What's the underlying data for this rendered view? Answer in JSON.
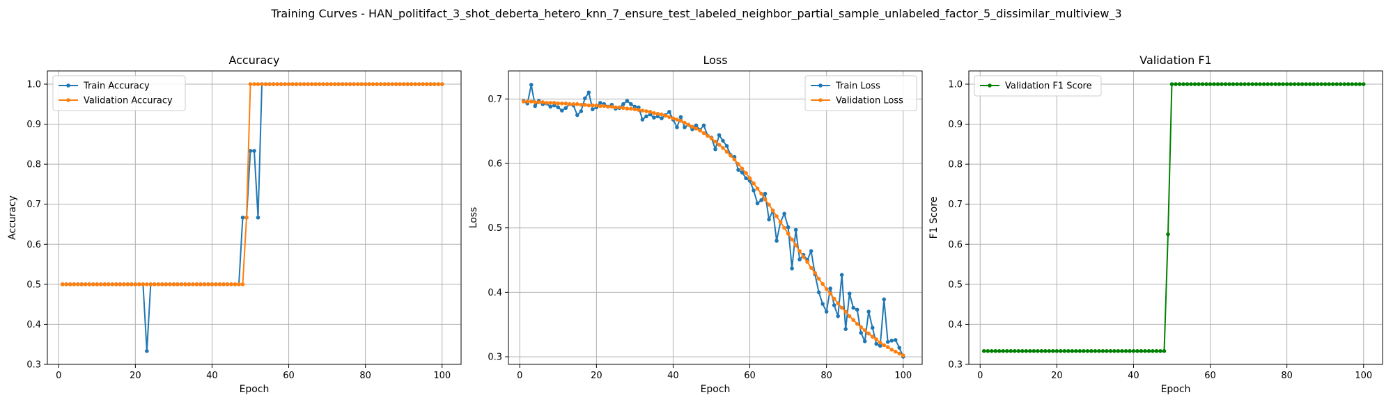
{
  "figure": {
    "suptitle": "Training Curves - HAN_politifact_3_shot_deberta_hetero_knn_7_ensure_test_labeled_neighbor_partial_sample_unlabeled_factor_5_dissimilar_multiview_3"
  },
  "colors": {
    "train": "#1f77b4",
    "validation": "#ff7f0e",
    "f1": "#008000",
    "grid": "#b0b0b0",
    "axis": "#000000"
  },
  "chart_data": [
    {
      "type": "line",
      "title": "Accuracy",
      "xlabel": "Epoch",
      "ylabel": "Accuracy",
      "xlim": [
        -2.95,
        104.95
      ],
      "ylim": [
        0.3,
        1.033
      ],
      "xticks": [
        0,
        20,
        40,
        60,
        80,
        100
      ],
      "yticks": [
        0.3,
        0.4,
        0.5,
        0.6,
        0.7,
        0.8,
        0.9,
        1.0
      ],
      "ytick_labels": [
        "0.3",
        "0.4",
        "0.5",
        "0.6",
        "0.7",
        "0.8",
        "0.9",
        "1.0"
      ],
      "grid": true,
      "legend_position": "upper left",
      "x": [
        1,
        2,
        3,
        4,
        5,
        6,
        7,
        8,
        9,
        10,
        11,
        12,
        13,
        14,
        15,
        16,
        17,
        18,
        19,
        20,
        21,
        22,
        23,
        24,
        25,
        26,
        27,
        28,
        29,
        30,
        31,
        32,
        33,
        34,
        35,
        36,
        37,
        38,
        39,
        40,
        41,
        42,
        43,
        44,
        45,
        46,
        47,
        48,
        49,
        50,
        51,
        52,
        53,
        54,
        55,
        56,
        57,
        58,
        59,
        60,
        61,
        62,
        63,
        64,
        65,
        66,
        67,
        68,
        69,
        70,
        71,
        72,
        73,
        74,
        75,
        76,
        77,
        78,
        79,
        80,
        81,
        82,
        83,
        84,
        85,
        86,
        87,
        88,
        89,
        90,
        91,
        92,
        93,
        94,
        95,
        96,
        97,
        98,
        99,
        100
      ],
      "series": [
        {
          "name": "Train Accuracy",
          "color": "#1f77b4",
          "values": [
            0.5,
            0.5,
            0.5,
            0.5,
            0.5,
            0.5,
            0.5,
            0.5,
            0.5,
            0.5,
            0.5,
            0.5,
            0.5,
            0.5,
            0.5,
            0.5,
            0.5,
            0.5,
            0.5,
            0.5,
            0.5,
            0.5,
            0.3333,
            0.5,
            0.5,
            0.5,
            0.5,
            0.5,
            0.5,
            0.5,
            0.5,
            0.5,
            0.5,
            0.5,
            0.5,
            0.5,
            0.5,
            0.5,
            0.5,
            0.5,
            0.5,
            0.5,
            0.5,
            0.5,
            0.5,
            0.5,
            0.5,
            0.6667,
            0.6667,
            0.8333,
            0.8333,
            0.6667,
            1.0,
            1.0,
            1.0,
            1.0,
            1.0,
            1.0,
            1.0,
            1.0,
            1.0,
            1.0,
            1.0,
            1.0,
            1.0,
            1.0,
            1.0,
            1.0,
            1.0,
            1.0,
            1.0,
            1.0,
            1.0,
            1.0,
            1.0,
            1.0,
            1.0,
            1.0,
            1.0,
            1.0,
            1.0,
            1.0,
            1.0,
            1.0,
            1.0,
            1.0,
            1.0,
            1.0,
            1.0,
            1.0,
            1.0,
            1.0,
            1.0,
            1.0,
            1.0,
            1.0,
            1.0,
            1.0,
            1.0,
            1.0
          ]
        },
        {
          "name": "Validation Accuracy",
          "color": "#ff7f0e",
          "values": [
            0.5,
            0.5,
            0.5,
            0.5,
            0.5,
            0.5,
            0.5,
            0.5,
            0.5,
            0.5,
            0.5,
            0.5,
            0.5,
            0.5,
            0.5,
            0.5,
            0.5,
            0.5,
            0.5,
            0.5,
            0.5,
            0.5,
            0.5,
            0.5,
            0.5,
            0.5,
            0.5,
            0.5,
            0.5,
            0.5,
            0.5,
            0.5,
            0.5,
            0.5,
            0.5,
            0.5,
            0.5,
            0.5,
            0.5,
            0.5,
            0.5,
            0.5,
            0.5,
            0.5,
            0.5,
            0.5,
            0.5,
            0.5,
            0.6667,
            1.0,
            1.0,
            1.0,
            1.0,
            1.0,
            1.0,
            1.0,
            1.0,
            1.0,
            1.0,
            1.0,
            1.0,
            1.0,
            1.0,
            1.0,
            1.0,
            1.0,
            1.0,
            1.0,
            1.0,
            1.0,
            1.0,
            1.0,
            1.0,
            1.0,
            1.0,
            1.0,
            1.0,
            1.0,
            1.0,
            1.0,
            1.0,
            1.0,
            1.0,
            1.0,
            1.0,
            1.0,
            1.0,
            1.0,
            1.0,
            1.0,
            1.0,
            1.0,
            1.0,
            1.0,
            1.0,
            1.0,
            1.0,
            1.0,
            1.0,
            1.0
          ]
        }
      ]
    },
    {
      "type": "line",
      "title": "Loss",
      "xlabel": "Epoch",
      "ylabel": "Loss",
      "xlim": [
        -2.95,
        104.95
      ],
      "ylim": [
        0.2882,
        0.7435
      ],
      "xticks": [
        0,
        20,
        40,
        60,
        80,
        100
      ],
      "yticks": [
        0.3,
        0.4,
        0.5,
        0.6,
        0.7
      ],
      "ytick_labels": [
        "0.3",
        "0.4",
        "0.5",
        "0.6",
        "0.7"
      ],
      "grid": true,
      "legend_position": "upper right",
      "x": [
        1,
        2,
        3,
        4,
        5,
        6,
        7,
        8,
        9,
        10,
        11,
        12,
        13,
        14,
        15,
        16,
        17,
        18,
        19,
        20,
        21,
        22,
        23,
        24,
        25,
        26,
        27,
        28,
        29,
        30,
        31,
        32,
        33,
        34,
        35,
        36,
        37,
        38,
        39,
        40,
        41,
        42,
        43,
        44,
        45,
        46,
        47,
        48,
        49,
        50,
        51,
        52,
        53,
        54,
        55,
        56,
        57,
        58,
        59,
        60,
        61,
        62,
        63,
        64,
        65,
        66,
        67,
        68,
        69,
        70,
        71,
        72,
        73,
        74,
        75,
        76,
        77,
        78,
        79,
        80,
        81,
        82,
        83,
        84,
        85,
        86,
        87,
        88,
        89,
        90,
        91,
        92,
        93,
        94,
        95,
        96,
        97,
        98,
        99,
        100
      ],
      "series": [
        {
          "name": "Train Loss",
          "color": "#1f77b4",
          "values": [
            0.697,
            0.693,
            0.722,
            0.689,
            0.697,
            0.692,
            0.693,
            0.688,
            0.69,
            0.687,
            0.682,
            0.686,
            0.692,
            0.69,
            0.675,
            0.681,
            0.701,
            0.71,
            0.684,
            0.687,
            0.694,
            0.692,
            0.688,
            0.691,
            0.685,
            0.686,
            0.692,
            0.697,
            0.692,
            0.688,
            0.687,
            0.668,
            0.673,
            0.676,
            0.671,
            0.673,
            0.67,
            0.675,
            0.68,
            0.668,
            0.656,
            0.672,
            0.656,
            0.66,
            0.653,
            0.659,
            0.652,
            0.659,
            0.643,
            0.64,
            0.622,
            0.644,
            0.635,
            0.627,
            0.613,
            0.61,
            0.59,
            0.586,
            0.577,
            0.573,
            0.558,
            0.538,
            0.543,
            0.553,
            0.513,
            0.527,
            0.48,
            0.509,
            0.522,
            0.501,
            0.437,
            0.497,
            0.451,
            0.458,
            0.45,
            0.464,
            0.428,
            0.4,
            0.382,
            0.37,
            0.406,
            0.38,
            0.363,
            0.427,
            0.343,
            0.398,
            0.376,
            0.373,
            0.337,
            0.324,
            0.37,
            0.345,
            0.32,
            0.317,
            0.389,
            0.323,
            0.325,
            0.326,
            0.314,
            0.3
          ]
        },
        {
          "name": "Validation Loss",
          "color": "#ff7f0e",
          "values": [
            0.696,
            0.696,
            0.696,
            0.695,
            0.695,
            0.695,
            0.694,
            0.694,
            0.694,
            0.693,
            0.693,
            0.693,
            0.692,
            0.692,
            0.692,
            0.691,
            0.691,
            0.69,
            0.69,
            0.69,
            0.689,
            0.689,
            0.688,
            0.688,
            0.687,
            0.687,
            0.686,
            0.685,
            0.685,
            0.684,
            0.683,
            0.682,
            0.681,
            0.68,
            0.678,
            0.677,
            0.676,
            0.674,
            0.672,
            0.67,
            0.668,
            0.666,
            0.663,
            0.66,
            0.657,
            0.654,
            0.651,
            0.647,
            0.643,
            0.639,
            0.634,
            0.629,
            0.624,
            0.618,
            0.612,
            0.606,
            0.599,
            0.592,
            0.585,
            0.577,
            0.569,
            0.561,
            0.553,
            0.544,
            0.536,
            0.527,
            0.518,
            0.509,
            0.5,
            0.491,
            0.482,
            0.473,
            0.464,
            0.455,
            0.447,
            0.438,
            0.43,
            0.421,
            0.413,
            0.405,
            0.398,
            0.39,
            0.383,
            0.376,
            0.37,
            0.363,
            0.357,
            0.351,
            0.346,
            0.341,
            0.336,
            0.331,
            0.327,
            0.322,
            0.318,
            0.315,
            0.311,
            0.308,
            0.305,
            0.302
          ]
        }
      ]
    },
    {
      "type": "line",
      "title": "Validation F1",
      "xlabel": "Epoch",
      "ylabel": "F1 Score",
      "xlim": [
        -2.95,
        104.95
      ],
      "ylim": [
        0.3,
        1.033
      ],
      "xticks": [
        0,
        20,
        40,
        60,
        80,
        100
      ],
      "yticks": [
        0.3,
        0.4,
        0.5,
        0.6,
        0.7,
        0.8,
        0.9,
        1.0
      ],
      "ytick_labels": [
        "0.3",
        "0.4",
        "0.5",
        "0.6",
        "0.7",
        "0.8",
        "0.9",
        "1.0"
      ],
      "grid": true,
      "legend_position": "upper left",
      "x": [
        1,
        2,
        3,
        4,
        5,
        6,
        7,
        8,
        9,
        10,
        11,
        12,
        13,
        14,
        15,
        16,
        17,
        18,
        19,
        20,
        21,
        22,
        23,
        24,
        25,
        26,
        27,
        28,
        29,
        30,
        31,
        32,
        33,
        34,
        35,
        36,
        37,
        38,
        39,
        40,
        41,
        42,
        43,
        44,
        45,
        46,
        47,
        48,
        49,
        50,
        51,
        52,
        53,
        54,
        55,
        56,
        57,
        58,
        59,
        60,
        61,
        62,
        63,
        64,
        65,
        66,
        67,
        68,
        69,
        70,
        71,
        72,
        73,
        74,
        75,
        76,
        77,
        78,
        79,
        80,
        81,
        82,
        83,
        84,
        85,
        86,
        87,
        88,
        89,
        90,
        91,
        92,
        93,
        94,
        95,
        96,
        97,
        98,
        99,
        100
      ],
      "series": [
        {
          "name": "Validation F1 Score",
          "color": "#008000",
          "values": [
            0.3333,
            0.3333,
            0.3333,
            0.3333,
            0.3333,
            0.3333,
            0.3333,
            0.3333,
            0.3333,
            0.3333,
            0.3333,
            0.3333,
            0.3333,
            0.3333,
            0.3333,
            0.3333,
            0.3333,
            0.3333,
            0.3333,
            0.3333,
            0.3333,
            0.3333,
            0.3333,
            0.3333,
            0.3333,
            0.3333,
            0.3333,
            0.3333,
            0.3333,
            0.3333,
            0.3333,
            0.3333,
            0.3333,
            0.3333,
            0.3333,
            0.3333,
            0.3333,
            0.3333,
            0.3333,
            0.3333,
            0.3333,
            0.3333,
            0.3333,
            0.3333,
            0.3333,
            0.3333,
            0.3333,
            0.3333,
            0.625,
            1.0,
            1.0,
            1.0,
            1.0,
            1.0,
            1.0,
            1.0,
            1.0,
            1.0,
            1.0,
            1.0,
            1.0,
            1.0,
            1.0,
            1.0,
            1.0,
            1.0,
            1.0,
            1.0,
            1.0,
            1.0,
            1.0,
            1.0,
            1.0,
            1.0,
            1.0,
            1.0,
            1.0,
            1.0,
            1.0,
            1.0,
            1.0,
            1.0,
            1.0,
            1.0,
            1.0,
            1.0,
            1.0,
            1.0,
            1.0,
            1.0,
            1.0,
            1.0,
            1.0,
            1.0,
            1.0,
            1.0,
            1.0,
            1.0,
            1.0,
            1.0
          ]
        }
      ]
    }
  ]
}
